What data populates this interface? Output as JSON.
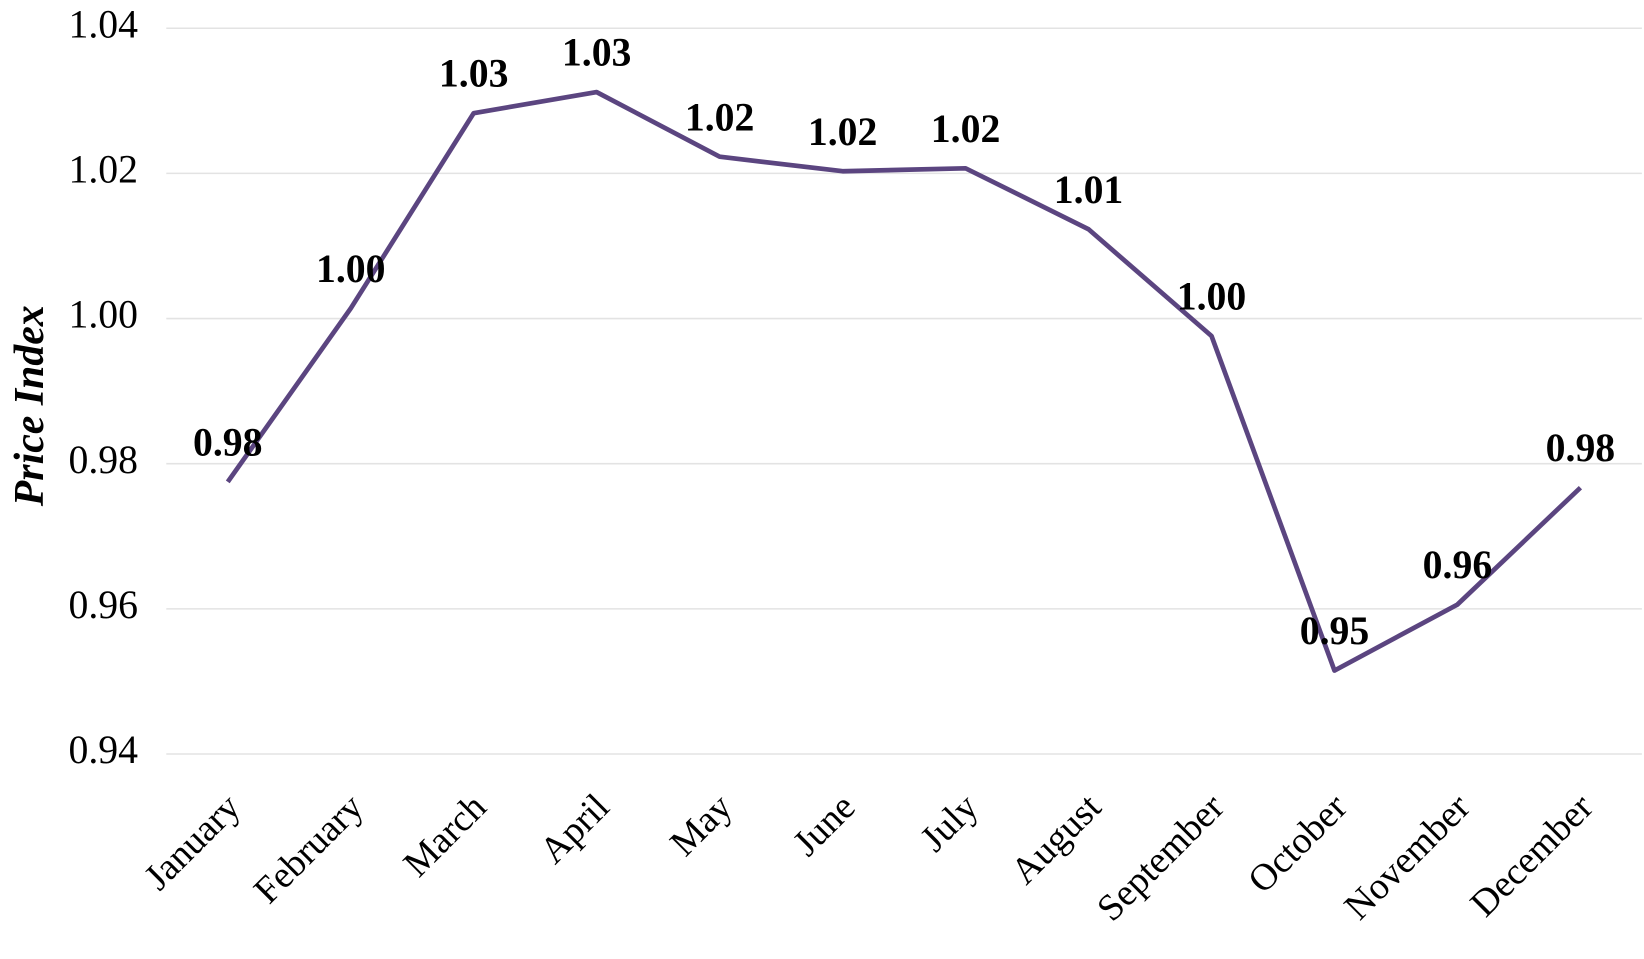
{
  "chart_data": {
    "type": "line",
    "y_label": "Price Index",
    "categories": [
      "January",
      "February",
      "March",
      "April",
      "May",
      "June",
      "July",
      "August",
      "September",
      "October",
      "November",
      "December"
    ],
    "values": [
      0.9775,
      1.0014,
      1.0283,
      1.0312,
      1.0223,
      1.0203,
      1.0207,
      1.0123,
      0.9976,
      0.9515,
      0.9606,
      0.9767
    ],
    "value_labels": [
      "0.98",
      "1.00",
      "1.03",
      "1.03",
      "1.02",
      "1.02",
      "1.02",
      "1.01",
      "1.00",
      "0.95",
      "0.96",
      "0.98"
    ],
    "color": "#5b4580",
    "ylim": [
      0.94,
      1.04
    ],
    "yticks": [
      0.94,
      0.96,
      0.98,
      {
        "value": 1,
        "label": "1.00"
      },
      1.02,
      1.04
    ],
    "grid": true
  }
}
